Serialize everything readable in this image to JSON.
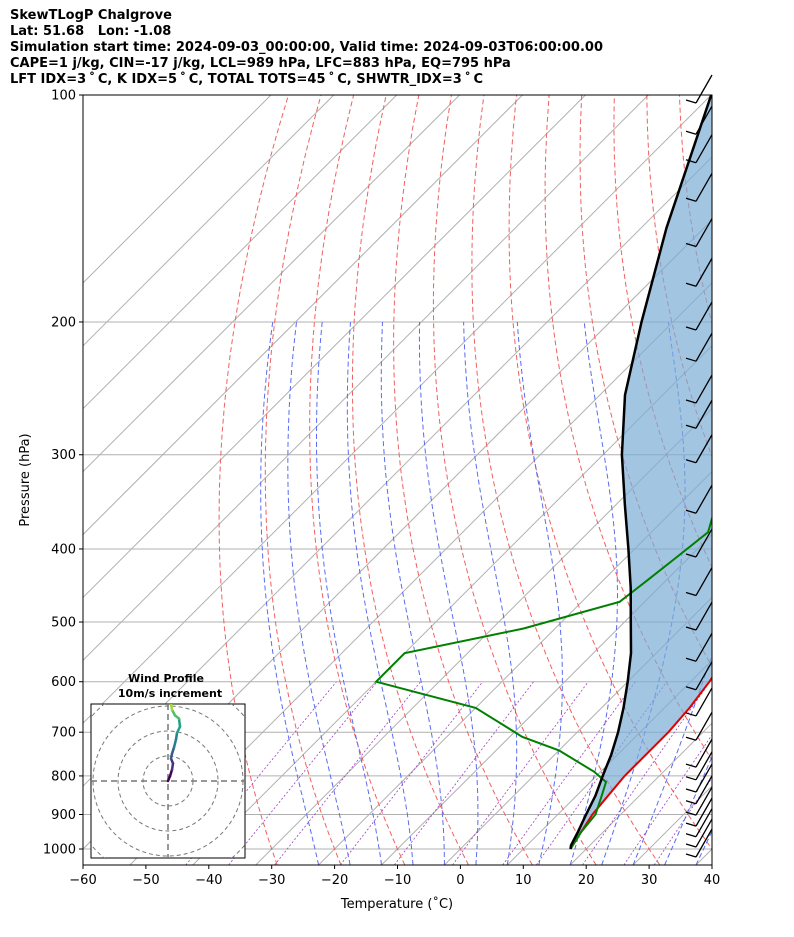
{
  "header": {
    "line1": "SkewTLogP Chalgrove",
    "line2": "Lat: 51.68   Lon: -1.08",
    "line3": "Simulation start time: 2024-09-03_00:00:00, Valid time: 2024-09-03T06:00:00.00",
    "line4": "CAPE=1 j/kg, CIN=-17 j/kg, LCL=989 hPa, LFC=883 hPa, EQ=795 hPa",
    "line5": "LFT IDX=3 ˚ C, K IDX=5 ˚ C, TOTAL TOTS=45 ˚ C, SHWTR_IDX=3 ˚ C"
  },
  "chart_data": {
    "type": "line",
    "subtype": "skew-t log-p",
    "xlabel": "Temperature (˚C)",
    "ylabel": "Pressure (hPa)",
    "xlim": [
      -60,
      40
    ],
    "ylim": [
      1040,
      100
    ],
    "x_ticks": [
      -60,
      -50,
      -40,
      -30,
      -20,
      -10,
      0,
      10,
      20,
      30,
      40
    ],
    "x_tick_labels": [
      "−60",
      "−50",
      "−40",
      "−30",
      "−20",
      "−10",
      "0",
      "10",
      "20",
      "30",
      "40"
    ],
    "y_ticks": [
      1000,
      900,
      800,
      700,
      600,
      500,
      400,
      300,
      200,
      100
    ],
    "y_tick_labels": [
      "1000",
      "900",
      "800",
      "700",
      "600",
      "500",
      "400",
      "300",
      "200",
      "100"
    ],
    "series": [
      {
        "color": "#e00000",
        "points": [
          [
            1000,
            17.5
          ],
          [
            975,
            17
          ],
          [
            950,
            16.5
          ],
          [
            900,
            15.5
          ],
          [
            850,
            15
          ],
          [
            800,
            14.5
          ],
          [
            750,
            14.5
          ],
          [
            700,
            14.5
          ],
          [
            650,
            14
          ],
          [
            600,
            13
          ],
          [
            550,
            11.5
          ],
          [
            500,
            9.5
          ],
          [
            450,
            6
          ],
          [
            400,
            1.5
          ],
          [
            350,
            -3
          ],
          [
            300,
            -8
          ],
          [
            290,
            -9.5
          ],
          [
            270,
            -9.5
          ],
          [
            250,
            -11
          ],
          [
            235,
            -13
          ],
          [
            220,
            -15
          ],
          [
            200,
            -19
          ],
          [
            190,
            -22
          ],
          [
            180,
            -25
          ],
          [
            170,
            -28
          ],
          [
            160,
            -31
          ],
          [
            140,
            -34
          ],
          [
            120,
            -38
          ],
          [
            100,
            -41
          ]
        ]
      },
      {
        "color": "#008000",
        "points": [
          [
            1000,
            17.5
          ],
          [
            950,
            16.5
          ],
          [
            900,
            16
          ],
          [
            850,
            14
          ],
          [
            815,
            12.5
          ],
          [
            790,
            9
          ],
          [
            740,
            0
          ],
          [
            710,
            -8
          ],
          [
            650,
            -20
          ],
          [
            600,
            -40
          ],
          [
            550,
            -40
          ],
          [
            510,
            -25
          ],
          [
            470,
            -14
          ],
          [
            440,
            -13
          ],
          [
            410,
            -12
          ],
          [
            380,
            -11
          ],
          [
            360,
            -13
          ],
          [
            340,
            -15
          ],
          [
            300,
            -19
          ],
          [
            270,
            -23
          ],
          [
            250,
            -26
          ],
          [
            225,
            -28
          ],
          [
            200,
            -30
          ],
          [
            185,
            -32
          ],
          [
            170,
            -35
          ],
          [
            158,
            -38
          ],
          [
            145,
            -41
          ],
          [
            135,
            -45
          ],
          [
            120,
            -51
          ],
          [
            100,
            -58
          ]
        ]
      },
      {
        "color": "#000000",
        "points": [
          [
            1000,
            17.5
          ],
          [
            989,
            17
          ],
          [
            950,
            16
          ],
          [
            900,
            14.5
          ],
          [
            850,
            13
          ],
          [
            800,
            11
          ],
          [
            750,
            9
          ],
          [
            700,
            6.5
          ],
          [
            650,
            3.5
          ],
          [
            600,
            0
          ],
          [
            550,
            -4
          ],
          [
            500,
            -9
          ],
          [
            450,
            -14.5
          ],
          [
            400,
            -21
          ],
          [
            350,
            -28.5
          ],
          [
            300,
            -37
          ],
          [
            250,
            -46
          ],
          [
            200,
            -55
          ],
          [
            150,
            -66
          ],
          [
            100,
            -80
          ]
        ]
      }
    ],
    "wind_barbs": {
      "pressures": [
        1000,
        970,
        940,
        910,
        880,
        850,
        820,
        790,
        760,
        700,
        650,
        600,
        550,
        500,
        450,
        400,
        350,
        300,
        270,
        250,
        220,
        200,
        175,
        155,
        135,
        120,
        110,
        100
      ],
      "note": "barbs drawn along right edge"
    },
    "inset": {
      "title_line1": "Wind Profile",
      "title_line2": "10m/s increment",
      "hodograph": [
        [
          0,
          0
        ],
        [
          0.4,
          0.6
        ],
        [
          0.8,
          1.4
        ],
        [
          1.0,
          2.2
        ],
        [
          0.6,
          2.8
        ],
        [
          0.8,
          3.4
        ],
        [
          1.2,
          4.2
        ],
        [
          1.6,
          5.2
        ],
        [
          1.8,
          6.0
        ],
        [
          2.4,
          6.8
        ],
        [
          2.2,
          7.8
        ],
        [
          1.4,
          8.2
        ],
        [
          0.8,
          8.9
        ],
        [
          0.6,
          9.6
        ],
        [
          1.0,
          10.3
        ],
        [
          1.6,
          10.8
        ],
        [
          2.2,
          11.2
        ]
      ]
    }
  }
}
